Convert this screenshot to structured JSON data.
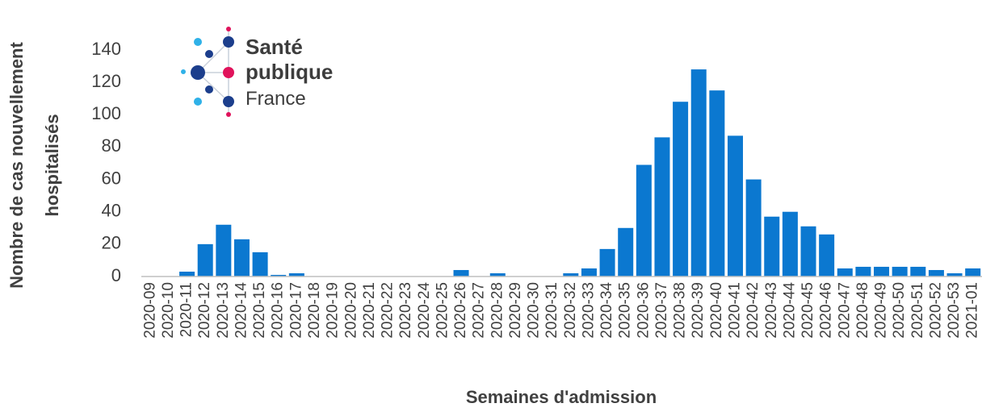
{
  "chart_data": {
    "type": "bar",
    "xlabel": "Semaines d'admission",
    "ylabel": [
      "Nombre de cas nouvellement",
      "hospitalisés"
    ],
    "logo_text": [
      "Santé",
      "publique",
      "France"
    ],
    "categories": [
      "2020-09",
      "2020-10",
      "2020-11",
      "2020-12",
      "2020-13",
      "2020-14",
      "2020-15",
      "2020-16",
      "2020-17",
      "2020-18",
      "2020-19",
      "2020-20",
      "2020-21",
      "2020-22",
      "2020-23",
      "2020-24",
      "2020-25",
      "2020-26",
      "2020-27",
      "2020-28",
      "2020-29",
      "2020-30",
      "2020-31",
      "2020-32",
      "2020-33",
      "2020-34",
      "2020-35",
      "2020-36",
      "2020-37",
      "2020-38",
      "2020-39",
      "2020-40",
      "2020-41",
      "2020-42",
      "2020-43",
      "2020-44",
      "2020-45",
      "2020-46",
      "2020-47",
      "2020-48",
      "2020-49",
      "2020-50",
      "2020-51",
      "2020-52",
      "2020-53",
      "2021-01"
    ],
    "values": [
      0,
      0,
      3,
      20,
      32,
      23,
      15,
      1,
      2,
      0,
      0,
      0,
      0,
      0,
      0,
      0,
      0,
      4,
      0,
      2,
      0,
      0,
      0,
      2,
      5,
      17,
      30,
      69,
      86,
      108,
      128,
      115,
      87,
      60,
      37,
      40,
      31,
      26,
      5,
      6,
      6,
      6,
      6,
      4,
      2,
      5
    ],
    "color": "#0b78d0",
    "ylim": [
      0,
      140
    ],
    "yticks": [
      0,
      20,
      40,
      60,
      80,
      100,
      120,
      140
    ]
  }
}
